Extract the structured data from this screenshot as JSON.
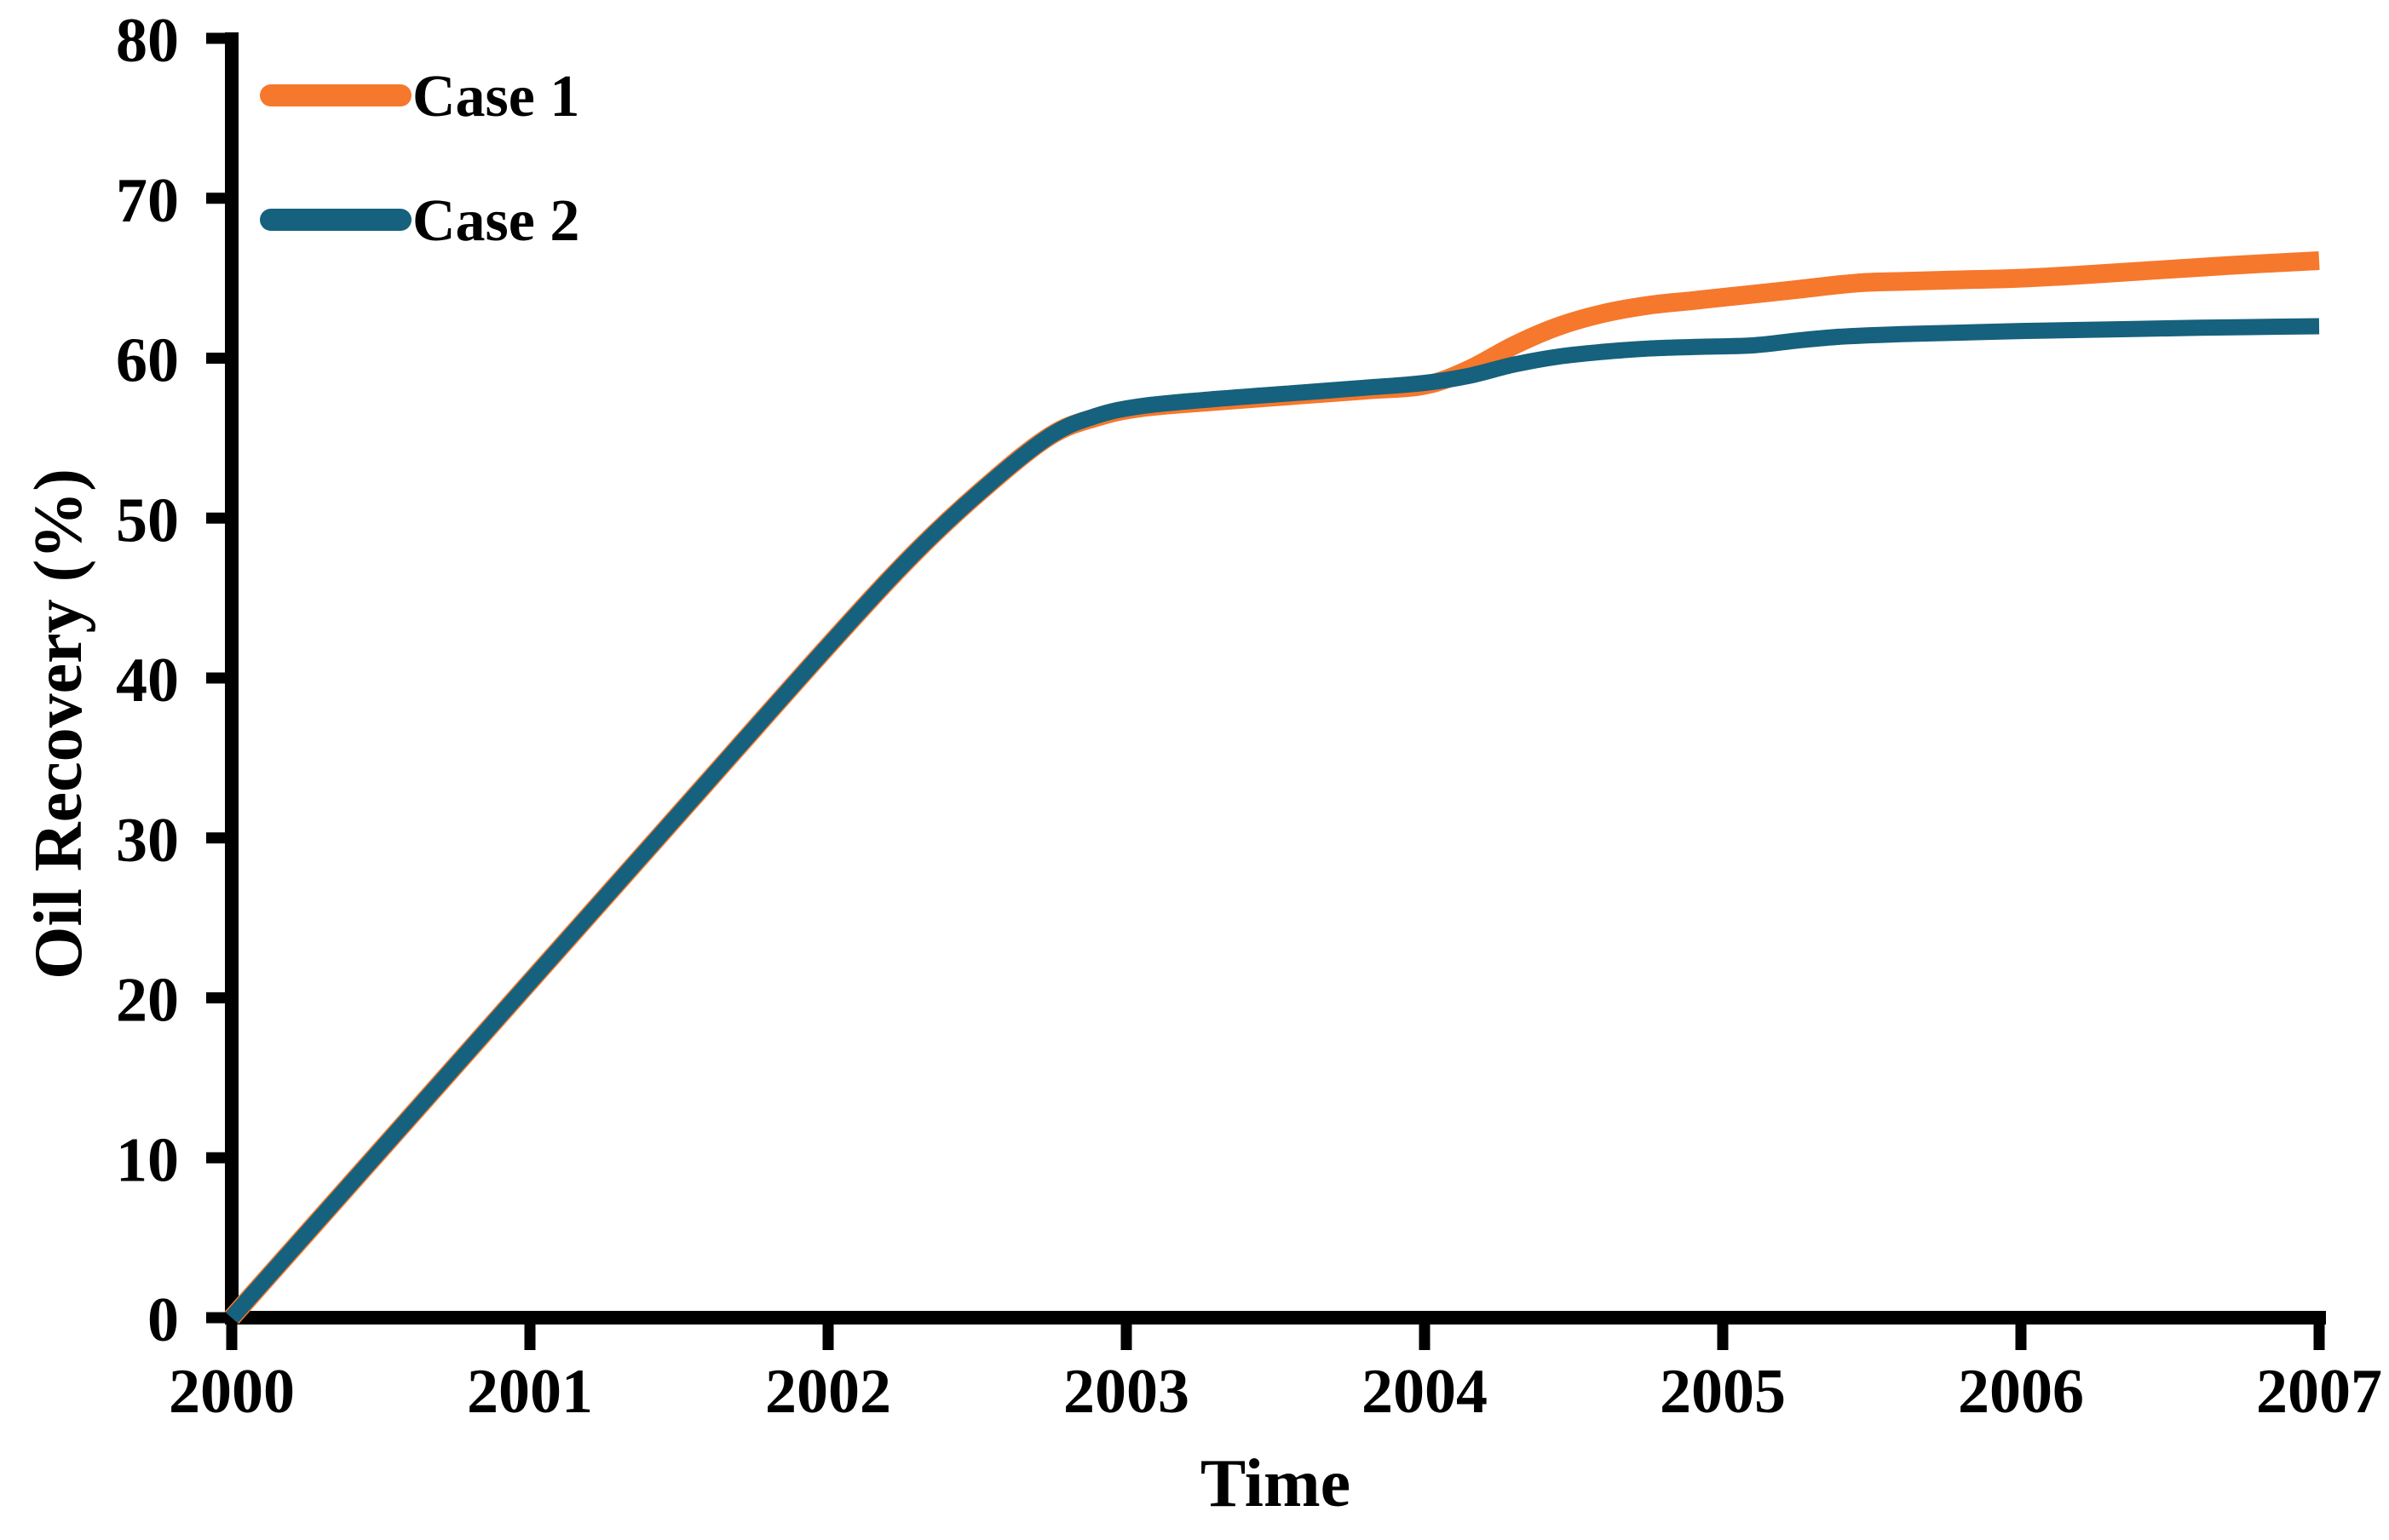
{
  "figure": {
    "background": "#ffffff",
    "axis_color": "#000000",
    "text_color": "#000000"
  },
  "chart_data": {
    "type": "line",
    "title": "",
    "xlabel": "Time",
    "ylabel": "Oil Recovery (%)",
    "xlim": [
      2000,
      2007
    ],
    "ylim": [
      0,
      80
    ],
    "x_ticks": [
      2000,
      2001,
      2002,
      2003,
      2004,
      2005,
      2006,
      2007
    ],
    "y_ticks": [
      0,
      10,
      20,
      30,
      40,
      50,
      60,
      70,
      80
    ],
    "grid": false,
    "legend_position": "top-left",
    "series": [
      {
        "name": "Case 1",
        "color": "#F6782C",
        "points": [
          [
            2000.0,
            0
          ],
          [
            2000.5,
            10.5
          ],
          [
            2001.0,
            21.0
          ],
          [
            2001.5,
            31.5
          ],
          [
            2002.0,
            42.0
          ],
          [
            2002.3,
            48.0
          ],
          [
            2002.55,
            52.3
          ],
          [
            2002.75,
            55.2
          ],
          [
            2002.9,
            56.3
          ],
          [
            2003.05,
            56.9
          ],
          [
            2003.3,
            57.3
          ],
          [
            2003.55,
            57.65
          ],
          [
            2003.8,
            58.0
          ],
          [
            2004.0,
            58.3
          ],
          [
            2004.15,
            59.3
          ],
          [
            2004.3,
            60.8
          ],
          [
            2004.45,
            62.0
          ],
          [
            2004.6,
            62.8
          ],
          [
            2004.75,
            63.3
          ],
          [
            2004.9,
            63.6
          ],
          [
            2005.05,
            63.9
          ],
          [
            2005.25,
            64.3
          ],
          [
            2005.45,
            64.7
          ],
          [
            2005.6,
            64.8
          ],
          [
            2005.8,
            64.9
          ],
          [
            2006.0,
            65.0
          ],
          [
            2006.2,
            65.2
          ],
          [
            2006.45,
            65.5
          ],
          [
            2006.7,
            65.8
          ],
          [
            2007.0,
            66.1
          ]
        ]
      },
      {
        "name": "Case 2",
        "color": "#16617D",
        "points": [
          [
            2000.0,
            0
          ],
          [
            2000.5,
            10.5
          ],
          [
            2001.0,
            21.0
          ],
          [
            2001.5,
            31.5
          ],
          [
            2002.0,
            42.0
          ],
          [
            2002.3,
            48.0
          ],
          [
            2002.55,
            52.3
          ],
          [
            2002.75,
            55.2
          ],
          [
            2002.9,
            56.4
          ],
          [
            2003.05,
            57.0
          ],
          [
            2003.3,
            57.45
          ],
          [
            2003.55,
            57.8
          ],
          [
            2003.8,
            58.15
          ],
          [
            2004.0,
            58.45
          ],
          [
            2004.15,
            58.9
          ],
          [
            2004.3,
            59.6
          ],
          [
            2004.45,
            60.1
          ],
          [
            2004.6,
            60.4
          ],
          [
            2004.75,
            60.6
          ],
          [
            2004.9,
            60.7
          ],
          [
            2005.1,
            60.8
          ],
          [
            2005.25,
            61.1
          ],
          [
            2005.4,
            61.35
          ],
          [
            2005.6,
            61.5
          ],
          [
            2005.8,
            61.6
          ],
          [
            2006.0,
            61.7
          ],
          [
            2006.3,
            61.8
          ],
          [
            2006.6,
            61.9
          ],
          [
            2007.0,
            62.0
          ]
        ]
      }
    ]
  }
}
